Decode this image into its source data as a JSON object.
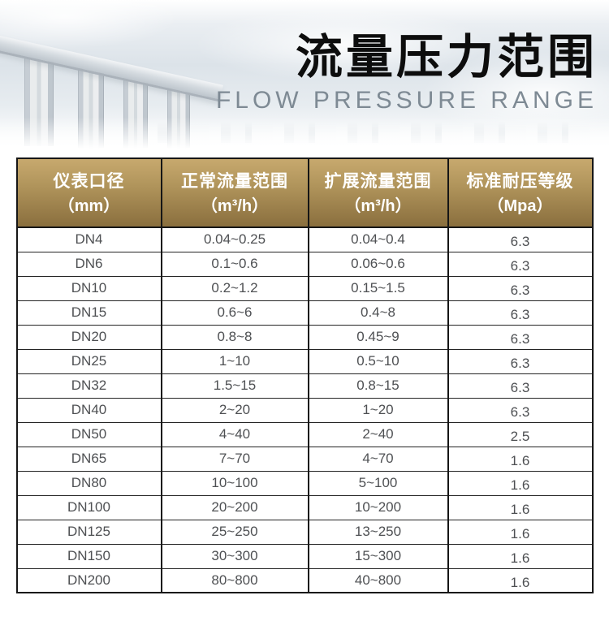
{
  "banner": {
    "title": "流量压力范围",
    "subtitle": "FLOW PRESSURE RANGE"
  },
  "table": {
    "headers": [
      {
        "line1": "仪表口径",
        "line2": "（mm）"
      },
      {
        "line1": "正常流量范围",
        "line2": "（m³/h）"
      },
      {
        "line1": "扩展流量范围",
        "line2": "（m³/h）"
      },
      {
        "line1": "标准耐压等级",
        "line2": "（Mpa）"
      }
    ],
    "rows": [
      [
        "DN4",
        "0.04~0.25",
        "0.04~0.4",
        "6.3"
      ],
      [
        "DN6",
        "0.1~0.6",
        "0.06~0.6",
        "6.3"
      ],
      [
        "DN10",
        "0.2~1.2",
        "0.15~1.5",
        "6.3"
      ],
      [
        "DN15",
        "0.6~6",
        "0.4~8",
        "6.3"
      ],
      [
        "DN20",
        "0.8~8",
        "0.45~9",
        "6.3"
      ],
      [
        "DN25",
        "1~10",
        "0.5~10",
        "6.3"
      ],
      [
        "DN32",
        "1.5~15",
        "0.8~15",
        "6.3"
      ],
      [
        "DN40",
        "2~20",
        "1~20",
        "6.3"
      ],
      [
        "DN50",
        "4~40",
        "2~40",
        "2.5"
      ],
      [
        "DN65",
        "7~70",
        "4~70",
        "1.6"
      ],
      [
        "DN80",
        "10~100",
        "5~100",
        "1.6"
      ],
      [
        "DN100",
        "20~200",
        "10~200",
        "1.6"
      ],
      [
        "DN125",
        "25~250",
        "13~250",
        "1.6"
      ],
      [
        "DN150",
        "30~300",
        "15~300",
        "1.6"
      ],
      [
        "DN200",
        "80~800",
        "40~800",
        "1.6"
      ]
    ]
  },
  "colors": {
    "header_gold_top": "#c7a96e",
    "header_gold_bottom": "#8a6f3e",
    "title_text": "#0d0d0d",
    "subtitle_text": "#7e8a94",
    "cell_text": "#4e5053",
    "table_border": "#161616"
  }
}
